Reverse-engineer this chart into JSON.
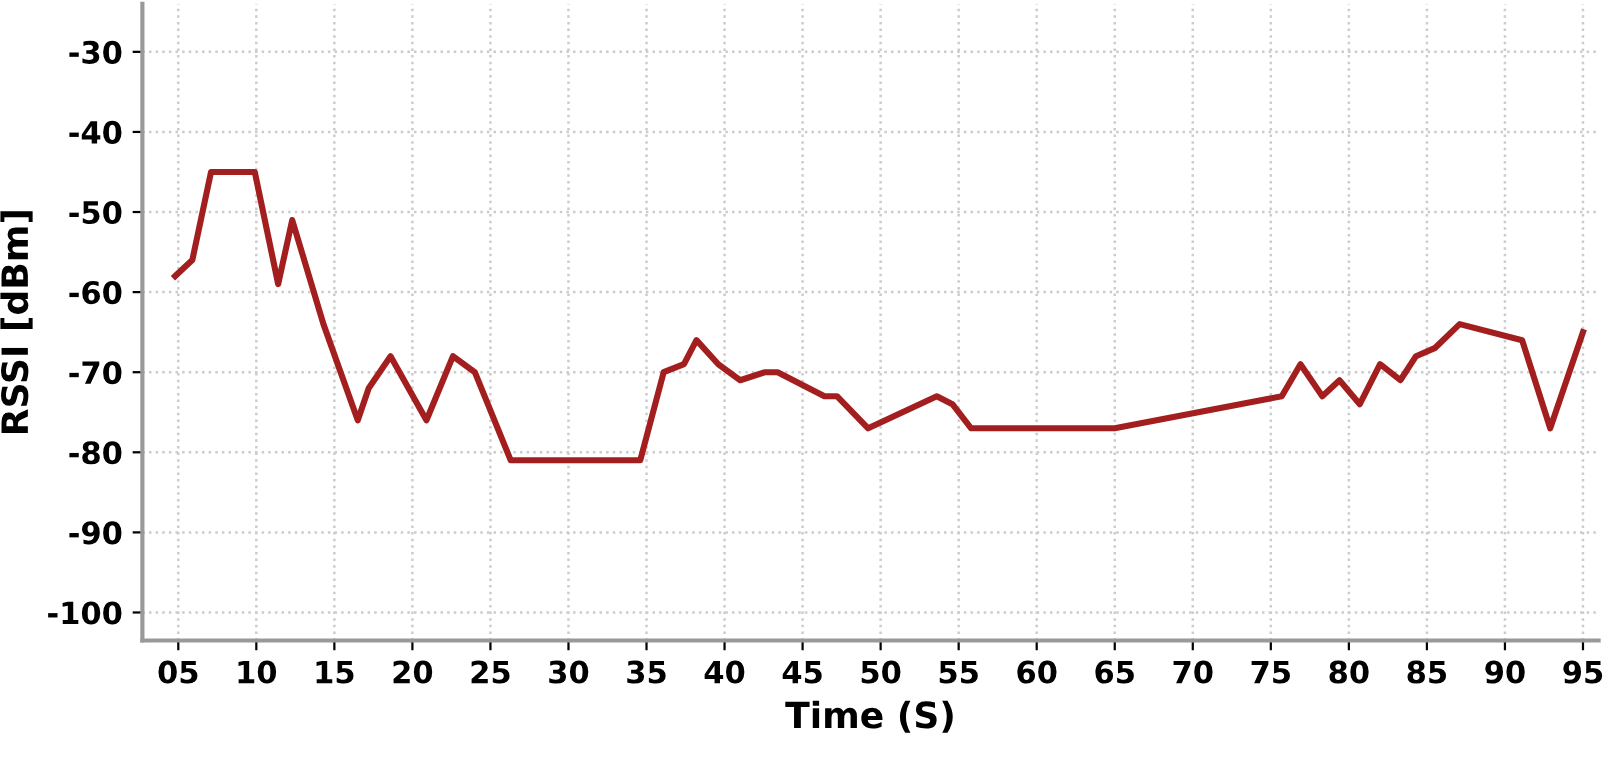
{
  "chart_data": {
    "type": "line",
    "xlabel": "Time (S)",
    "ylabel": "RSSI [dBm]",
    "x": [
      4.8,
      5.9,
      7.1,
      9.9,
      11.4,
      12.3,
      14.3,
      16.5,
      17.2,
      18.6,
      20.9,
      22.6,
      24.0,
      26.3,
      34.6,
      36.1,
      37.4,
      38.2,
      39.6,
      41.0,
      42.6,
      43.4,
      46.4,
      47.2,
      49.2,
      53.6,
      54.6,
      55.8,
      65.0,
      75.7,
      76.9,
      78.3,
      79.4,
      80.7,
      82.0,
      83.3,
      84.3,
      85.5,
      87.1,
      91.1,
      92.9,
      95.0
    ],
    "series": [
      {
        "color": "#a31f1f",
        "values": [
          -58,
          -56,
          -45,
          -45,
          -59,
          -51,
          -64,
          -76,
          -72,
          -68,
          -76,
          -68,
          -70,
          -81,
          -81,
          -70,
          -69,
          -66,
          -69,
          -71,
          -70,
          -70,
          -73,
          -73,
          -77,
          -73,
          -74,
          -77,
          -77,
          -73,
          -69,
          -73,
          -71,
          -74,
          -69,
          -71,
          -68,
          -67,
          -64,
          -66,
          -77,
          -65
        ]
      }
    ],
    "xlim": [
      2.7,
      96
    ],
    "ylim": [
      -103.5,
      -24
    ],
    "xticks": [
      {
        "value": 5,
        "label": "05"
      },
      10,
      15,
      20,
      25,
      30,
      35,
      40,
      45,
      50,
      55,
      60,
      65,
      70,
      75,
      80,
      85,
      90,
      95
    ],
    "yticks": [
      -100,
      -90,
      -80,
      -70,
      -60,
      -50,
      -40,
      -30
    ],
    "grid": true,
    "marker": "none",
    "line_style": "solid"
  }
}
